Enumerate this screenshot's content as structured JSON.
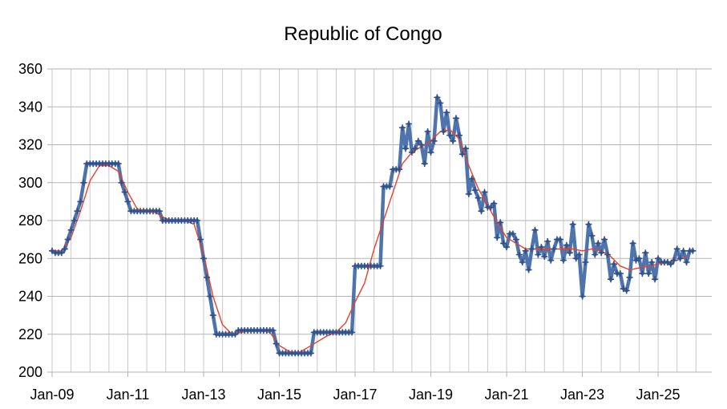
{
  "chart_data": {
    "type": "line",
    "title": "Republic of Congo",
    "xlabel": "",
    "ylabel": "",
    "ylim": [
      200,
      360
    ],
    "yticks": [
      200,
      220,
      240,
      260,
      280,
      300,
      320,
      340,
      360
    ],
    "xlim": [
      "2009-01",
      "2026-06"
    ],
    "xticks": [
      {
        "date": "2009-01",
        "label": "Jan-09"
      },
      {
        "date": "2011-01",
        "label": "Jan-11"
      },
      {
        "date": "2013-01",
        "label": "Jan-13"
      },
      {
        "date": "2015-01",
        "label": "Jan-15"
      },
      {
        "date": "2017-01",
        "label": "Jan-17"
      },
      {
        "date": "2019-01",
        "label": "Jan-19"
      },
      {
        "date": "2021-01",
        "label": "Jan-21"
      },
      {
        "date": "2023-01",
        "label": "Jan-23"
      },
      {
        "date": "2025-01",
        "label": "Jan-25"
      }
    ],
    "grid": true,
    "legend": "none",
    "colors": {
      "monthly": "#4f74ac",
      "average": "#e8402a"
    },
    "series": [
      {
        "kind": "monthly",
        "marker": "+",
        "points": [
          [
            "2009-01",
            264
          ],
          [
            "2009-02",
            263
          ],
          [
            "2009-03",
            263
          ],
          [
            "2009-04",
            263
          ],
          [
            "2009-05",
            265
          ],
          [
            "2009-06",
            270
          ],
          [
            "2009-07",
            275
          ],
          [
            "2009-08",
            280
          ],
          [
            "2009-09",
            285
          ],
          [
            "2009-10",
            290
          ],
          [
            "2009-11",
            300
          ],
          [
            "2009-12",
            310
          ],
          [
            "2010-01",
            310
          ],
          [
            "2010-02",
            310
          ],
          [
            "2010-03",
            310
          ],
          [
            "2010-04",
            310
          ],
          [
            "2010-05",
            310
          ],
          [
            "2010-06",
            310
          ],
          [
            "2010-07",
            310
          ],
          [
            "2010-08",
            310
          ],
          [
            "2010-09",
            310
          ],
          [
            "2010-10",
            310
          ],
          [
            "2010-11",
            300
          ],
          [
            "2010-12",
            295
          ],
          [
            "2011-01",
            290
          ],
          [
            "2011-02",
            285
          ],
          [
            "2011-03",
            285
          ],
          [
            "2011-04",
            285
          ],
          [
            "2011-05",
            285
          ],
          [
            "2011-06",
            285
          ],
          [
            "2011-07",
            285
          ],
          [
            "2011-08",
            285
          ],
          [
            "2011-09",
            285
          ],
          [
            "2011-10",
            285
          ],
          [
            "2011-11",
            285
          ],
          [
            "2011-12",
            280
          ],
          [
            "2012-01",
            280
          ],
          [
            "2012-02",
            280
          ],
          [
            "2012-03",
            280
          ],
          [
            "2012-04",
            280
          ],
          [
            "2012-05",
            280
          ],
          [
            "2012-06",
            280
          ],
          [
            "2012-07",
            280
          ],
          [
            "2012-08",
            280
          ],
          [
            "2012-09",
            280
          ],
          [
            "2012-10",
            280
          ],
          [
            "2012-11",
            280
          ],
          [
            "2012-12",
            270
          ],
          [
            "2013-01",
            260
          ],
          [
            "2013-02",
            250
          ],
          [
            "2013-03",
            240
          ],
          [
            "2013-04",
            230
          ],
          [
            "2013-05",
            220
          ],
          [
            "2013-06",
            220
          ],
          [
            "2013-07",
            220
          ],
          [
            "2013-08",
            220
          ],
          [
            "2013-09",
            220
          ],
          [
            "2013-10",
            220
          ],
          [
            "2013-11",
            220
          ],
          [
            "2013-12",
            222
          ],
          [
            "2014-01",
            222
          ],
          [
            "2014-02",
            222
          ],
          [
            "2014-03",
            222
          ],
          [
            "2014-04",
            222
          ],
          [
            "2014-05",
            222
          ],
          [
            "2014-06",
            222
          ],
          [
            "2014-07",
            222
          ],
          [
            "2014-08",
            222
          ],
          [
            "2014-09",
            222
          ],
          [
            "2014-10",
            222
          ],
          [
            "2014-11",
            222
          ],
          [
            "2014-12",
            215
          ],
          [
            "2015-01",
            210
          ],
          [
            "2015-02",
            210
          ],
          [
            "2015-03",
            210
          ],
          [
            "2015-04",
            210
          ],
          [
            "2015-05",
            210
          ],
          [
            "2015-06",
            210
          ],
          [
            "2015-07",
            210
          ],
          [
            "2015-08",
            210
          ],
          [
            "2015-09",
            210
          ],
          [
            "2015-10",
            210
          ],
          [
            "2015-11",
            210
          ],
          [
            "2015-12",
            221
          ],
          [
            "2016-01",
            221
          ],
          [
            "2016-02",
            221
          ],
          [
            "2016-03",
            221
          ],
          [
            "2016-04",
            221
          ],
          [
            "2016-05",
            221
          ],
          [
            "2016-06",
            221
          ],
          [
            "2016-07",
            221
          ],
          [
            "2016-08",
            221
          ],
          [
            "2016-09",
            221
          ],
          [
            "2016-10",
            221
          ],
          [
            "2016-11",
            221
          ],
          [
            "2016-12",
            221
          ],
          [
            "2017-01",
            256
          ],
          [
            "2017-02",
            256
          ],
          [
            "2017-03",
            256
          ],
          [
            "2017-04",
            256
          ],
          [
            "2017-05",
            256
          ],
          [
            "2017-06",
            256
          ],
          [
            "2017-07",
            256
          ],
          [
            "2017-08",
            256
          ],
          [
            "2017-09",
            256
          ],
          [
            "2017-10",
            298
          ],
          [
            "2017-11",
            298
          ],
          [
            "2017-12",
            298
          ],
          [
            "2018-01",
            307
          ],
          [
            "2018-02",
            307
          ],
          [
            "2018-03",
            307
          ],
          [
            "2018-04",
            329
          ],
          [
            "2018-05",
            318
          ],
          [
            "2018-06",
            331
          ],
          [
            "2018-07",
            316
          ],
          [
            "2018-08",
            318
          ],
          [
            "2018-09",
            322
          ],
          [
            "2018-10",
            320
          ],
          [
            "2018-11",
            310
          ],
          [
            "2018-12",
            327
          ],
          [
            "2019-01",
            316
          ],
          [
            "2019-02",
            322
          ],
          [
            "2019-03",
            345
          ],
          [
            "2019-04",
            342
          ],
          [
            "2019-05",
            327
          ],
          [
            "2019-06",
            337
          ],
          [
            "2019-07",
            325
          ],
          [
            "2019-08",
            322
          ],
          [
            "2019-09",
            334
          ],
          [
            "2019-10",
            325
          ],
          [
            "2019-11",
            315
          ],
          [
            "2019-12",
            318
          ],
          [
            "2020-01",
            294
          ],
          [
            "2020-02",
            302
          ],
          [
            "2020-03",
            296
          ],
          [
            "2020-04",
            292
          ],
          [
            "2020-05",
            285
          ],
          [
            "2020-06",
            295
          ],
          [
            "2020-07",
            287
          ],
          [
            "2020-08",
            287
          ],
          [
            "2020-09",
            289
          ],
          [
            "2020-10",
            271
          ],
          [
            "2020-11",
            279
          ],
          [
            "2020-12",
            268
          ],
          [
            "2021-01",
            266
          ],
          [
            "2021-02",
            273
          ],
          [
            "2021-03",
            273
          ],
          [
            "2021-04",
            270
          ],
          [
            "2021-05",
            262
          ],
          [
            "2021-06",
            258
          ],
          [
            "2021-07",
            264
          ],
          [
            "2021-08",
            254
          ],
          [
            "2021-09",
            265
          ],
          [
            "2021-10",
            275
          ],
          [
            "2021-11",
            262
          ],
          [
            "2021-12",
            266
          ],
          [
            "2022-01",
            261
          ],
          [
            "2022-02",
            269
          ],
          [
            "2022-03",
            259
          ],
          [
            "2022-04",
            265
          ],
          [
            "2022-05",
            270
          ],
          [
            "2022-06",
            270
          ],
          [
            "2022-07",
            259
          ],
          [
            "2022-08",
            267
          ],
          [
            "2022-09",
            263
          ],
          [
            "2022-10",
            278
          ],
          [
            "2022-11",
            260
          ],
          [
            "2022-12",
            262
          ],
          [
            "2023-01",
            240
          ],
          [
            "2023-02",
            258
          ],
          [
            "2023-03",
            278
          ],
          [
            "2023-04",
            272
          ],
          [
            "2023-05",
            262
          ],
          [
            "2023-06",
            268
          ],
          [
            "2023-07",
            263
          ],
          [
            "2023-08",
            270
          ],
          [
            "2023-09",
            262
          ],
          [
            "2023-10",
            249
          ],
          [
            "2023-11",
            257
          ],
          [
            "2023-12",
            252
          ],
          [
            "2024-01",
            252
          ],
          [
            "2024-02",
            244
          ],
          [
            "2024-03",
            243
          ],
          [
            "2024-04",
            250
          ],
          [
            "2024-05",
            268
          ],
          [
            "2024-06",
            259
          ],
          [
            "2024-07",
            260
          ],
          [
            "2024-08",
            252
          ],
          [
            "2024-09",
            263
          ],
          [
            "2024-10",
            252
          ],
          [
            "2024-11",
            258
          ],
          [
            "2024-12",
            249
          ],
          [
            "2025-01",
            260
          ],
          [
            "2025-02",
            258
          ],
          [
            "2025-03",
            258
          ],
          [
            "2025-04",
            258
          ],
          [
            "2025-05",
            257
          ],
          [
            "2025-06",
            259
          ],
          [
            "2025-07",
            265
          ],
          [
            "2025-08",
            260
          ],
          [
            "2025-09",
            264
          ],
          [
            "2025-10",
            258
          ],
          [
            "2025-11",
            264
          ],
          [
            "2025-12",
            264
          ]
        ]
      },
      {
        "kind": "average",
        "marker": "none",
        "points": [
          [
            "2009-01",
            264
          ],
          [
            "2009-04",
            264
          ],
          [
            "2009-07",
            271
          ],
          [
            "2009-10",
            285
          ],
          [
            "2010-01",
            301
          ],
          [
            "2010-04",
            309
          ],
          [
            "2010-07",
            309
          ],
          [
            "2010-10",
            306
          ],
          [
            "2011-01",
            295
          ],
          [
            "2011-04",
            286
          ],
          [
            "2011-07",
            285
          ],
          [
            "2011-10",
            284
          ],
          [
            "2012-01",
            281
          ],
          [
            "2012-04",
            280
          ],
          [
            "2012-07",
            280
          ],
          [
            "2012-10",
            278
          ],
          [
            "2013-01",
            262
          ],
          [
            "2013-04",
            240
          ],
          [
            "2013-07",
            225
          ],
          [
            "2013-10",
            220
          ],
          [
            "2014-01",
            221
          ],
          [
            "2014-04",
            222
          ],
          [
            "2014-07",
            222
          ],
          [
            "2014-10",
            221
          ],
          [
            "2015-01",
            214
          ],
          [
            "2015-04",
            211
          ],
          [
            "2015-07",
            210
          ],
          [
            "2015-10",
            213
          ],
          [
            "2016-01",
            216
          ],
          [
            "2016-04",
            219
          ],
          [
            "2016-07",
            221
          ],
          [
            "2016-10",
            226
          ],
          [
            "2017-01",
            237
          ],
          [
            "2017-04",
            247
          ],
          [
            "2017-07",
            265
          ],
          [
            "2017-10",
            280
          ],
          [
            "2018-01",
            295
          ],
          [
            "2018-04",
            310
          ],
          [
            "2018-07",
            316
          ],
          [
            "2018-10",
            319
          ],
          [
            "2019-01",
            322
          ],
          [
            "2019-04",
            327
          ],
          [
            "2019-07",
            328
          ],
          [
            "2019-10",
            323
          ],
          [
            "2020-01",
            309
          ],
          [
            "2020-04",
            297
          ],
          [
            "2020-07",
            288
          ],
          [
            "2020-10",
            279
          ],
          [
            "2021-01",
            271
          ],
          [
            "2021-04",
            268
          ],
          [
            "2021-07",
            265
          ],
          [
            "2021-10",
            265
          ],
          [
            "2022-01",
            265
          ],
          [
            "2022-04",
            265
          ],
          [
            "2022-07",
            265
          ],
          [
            "2022-10",
            265
          ],
          [
            "2023-01",
            264
          ],
          [
            "2023-04",
            265
          ],
          [
            "2023-07",
            264
          ],
          [
            "2023-10",
            261
          ],
          [
            "2024-01",
            256
          ],
          [
            "2024-04",
            254
          ],
          [
            "2024-07",
            255
          ],
          [
            "2024-10",
            256
          ],
          [
            "2025-01",
            257
          ],
          [
            "2025-04",
            258
          ],
          [
            "2025-07",
            259
          ],
          [
            "2025-10",
            261
          ]
        ]
      }
    ]
  }
}
